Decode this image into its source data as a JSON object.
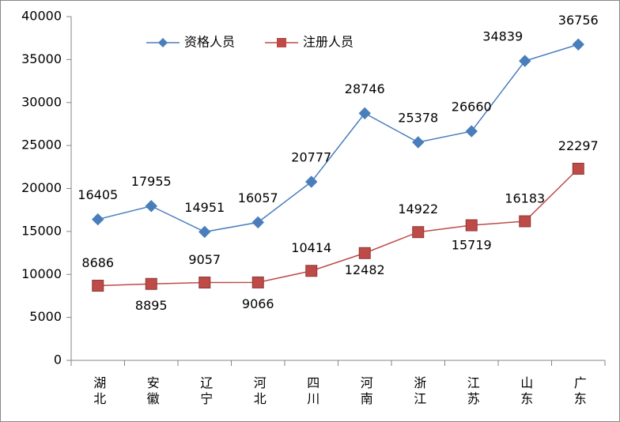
{
  "chart_data": {
    "type": "line",
    "categories": [
      "湖北",
      "安徽",
      "辽宁",
      "河北",
      "四川",
      "河南",
      "浙江",
      "江苏",
      "山东",
      "广东"
    ],
    "series": [
      {
        "name": "资格人员",
        "color": "#4a7ebb",
        "marker": "diamond",
        "values": [
          16405,
          17955,
          14951,
          16057,
          20777,
          28746,
          25378,
          26660,
          34839,
          36756
        ]
      },
      {
        "name": "注册人员",
        "color": "#be4b48",
        "marker": "square",
        "values": [
          8686,
          8895,
          9057,
          9066,
          10414,
          12482,
          14922,
          15719,
          16183,
          22297
        ]
      }
    ],
    "ylim": [
      0,
      40000
    ],
    "yticks": [
      0,
      5000,
      10000,
      15000,
      20000,
      25000,
      30000,
      35000,
      40000
    ],
    "grid": false,
    "legend": "top"
  }
}
